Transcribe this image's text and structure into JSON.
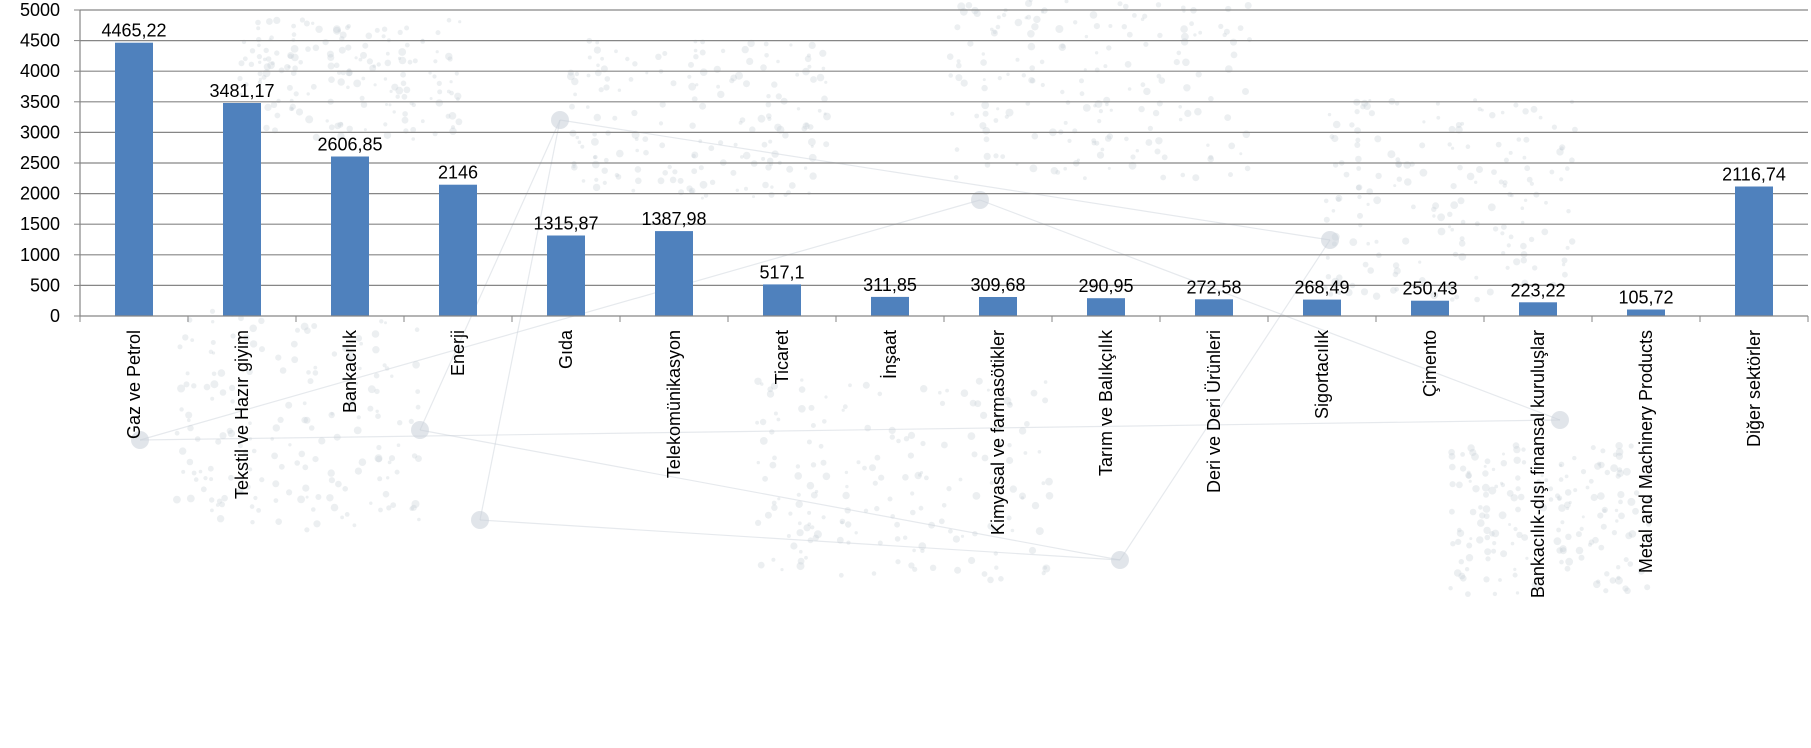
{
  "chart_data": {
    "type": "bar",
    "title": "",
    "xlabel": "",
    "ylabel": "",
    "ylim": [
      0,
      5000
    ],
    "yticks": [
      "0",
      "500",
      "1000",
      "1500",
      "2000",
      "2500",
      "3000",
      "3500",
      "4000",
      "4500",
      "5000"
    ],
    "categories": [
      "Gaz ve Petrol",
      "Tekstil ve Hazır giyim",
      "Bankacılık",
      "Enerji",
      "Gıda",
      "Telekomünikasyon",
      "Ticaret",
      "İnşaat",
      "Kimyasal ve farmasötikler",
      "Tarım ve Balıkçılık",
      "Deri ve Deri Ürünleri",
      "Sigortacılık",
      "Çimento",
      "Bankacılık-dışı finansal kuruluşlar",
      "Metal and Machinery Products",
      "Diğer sektörler"
    ],
    "values": [
      4465.22,
      3481.17,
      2606.85,
      2146,
      1315.87,
      1387.98,
      517.1,
      311.85,
      309.68,
      290.95,
      272.58,
      268.49,
      250.43,
      223.22,
      105.72,
      2116.74
    ],
    "data_labels": [
      "4465,22",
      "3481,17",
      "2606,85",
      "2146",
      "1315,87",
      "1387,98",
      "517,1",
      "311,85",
      "309,68",
      "290,95",
      "272,58",
      "268,49",
      "250,43",
      "223,22",
      "105,72",
      "2116,74"
    ],
    "grid": true,
    "legend": "none",
    "colors": {
      "bar": "#4f81bd",
      "grid": "#868686",
      "axis": "#868686",
      "text": "#000000",
      "background_map": "#c9d0d8"
    }
  }
}
